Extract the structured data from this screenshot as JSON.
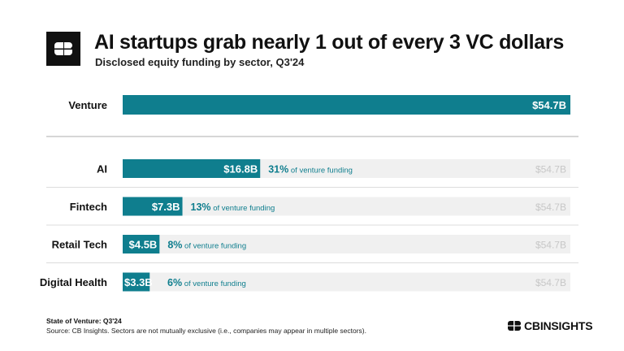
{
  "header": {
    "title": "AI startups grab nearly 1 out of every 3 VC dollars",
    "subtitle": "Disclosed equity funding by sector, Q3'24"
  },
  "footer": {
    "title": "State of Venture: Q3'24",
    "source": "Source: CB Insights. Sectors are not mutually exclusive (i.e., companies may appear in multiple sectors).",
    "brand": "CBINSIGHTS"
  },
  "colors": {
    "bar": "#0f7e8e",
    "track": "#f0f0f0",
    "total_label": "#c7c7c7",
    "share_text": "#0f7e8e"
  },
  "chart_data": {
    "type": "bar",
    "orientation": "horizontal",
    "unit": "$B",
    "xlim": [
      0,
      54.7
    ],
    "total": {
      "category": "Venture",
      "value": 54.7,
      "label": "$54.7B"
    },
    "categories": [
      "AI",
      "Fintech",
      "Retail Tech",
      "Digital Health"
    ],
    "values": [
      16.8,
      7.3,
      4.5,
      3.3
    ],
    "value_labels": [
      "$16.8B",
      "$7.3B",
      "$4.5B",
      "$3.3B"
    ],
    "share_pct": [
      "31%",
      "13%",
      "8%",
      "6%"
    ],
    "share_suffix": "of venture funding",
    "track_label": "$54.7B"
  }
}
